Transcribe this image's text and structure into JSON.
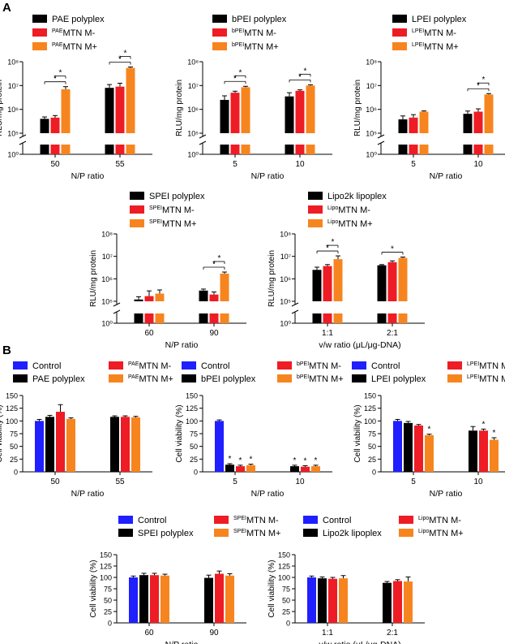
{
  "colors": {
    "black": "#000000",
    "red": "#ee1c24",
    "orange": "#f7851f",
    "blue": "#1f1fff"
  },
  "panels": [
    "A",
    "B"
  ],
  "chart_data": [
    {
      "panel": "A",
      "type": "bar",
      "log_scale": true,
      "ylim": [
        1,
        100000000
      ],
      "broken_axis": true,
      "ylabel": "RLU/mg protein",
      "xlabel": "N/P ratio",
      "yticks": [
        "10⁰",
        "10⁵",
        "10⁶",
        "10⁷",
        "10⁸"
      ],
      "legend": [
        {
          "text": "PAE polyplex",
          "sup": "",
          "color": "#000000"
        },
        {
          "text": "MTN M-",
          "sup": "PAE",
          "color": "#ee1c24"
        },
        {
          "text": "MTN M+",
          "sup": "PAE",
          "color": "#f7851f"
        }
      ],
      "categories": [
        "50",
        "55"
      ],
      "series": [
        {
          "name": "PAE polyplex",
          "values": [
            400000,
            8000000
          ],
          "err": [
            80000,
            3000000
          ]
        },
        {
          "name": "PAEMTN M-",
          "values": [
            450000,
            9000000
          ],
          "err": [
            100000,
            3500000
          ]
        },
        {
          "name": "PAEMTN M+",
          "values": [
            7000000,
            55000000
          ],
          "err": [
            2000000,
            5000000
          ]
        }
      ],
      "significance": [
        "*",
        "*",
        "*",
        "*"
      ]
    },
    {
      "panel": "A",
      "type": "bar",
      "log_scale": true,
      "ylim": [
        1,
        100000000
      ],
      "broken_axis": true,
      "ylabel": "RLU/mg protein",
      "xlabel": "N/P ratio",
      "yticks": [
        "10⁰",
        "10⁵",
        "10⁶",
        "10⁷",
        "10⁸"
      ],
      "legend": [
        {
          "text": "bPEI polyplex",
          "sup": "",
          "color": "#000000"
        },
        {
          "text": "MTN M-",
          "sup": "bPEI",
          "color": "#ee1c24"
        },
        {
          "text": "MTN M+",
          "sup": "bPEI",
          "color": "#f7851f"
        }
      ],
      "categories": [
        "5",
        "10"
      ],
      "series": [
        {
          "name": "bPEI polyplex",
          "values": [
            2500000,
            3500000
          ],
          "err": [
            1200000,
            1500000
          ]
        },
        {
          "name": "bPEIMTN M-",
          "values": [
            5000000,
            6000000
          ],
          "err": [
            800000,
            600000
          ]
        },
        {
          "name": "bPEIMTN M+",
          "values": [
            8500000,
            10000000
          ],
          "err": [
            800000,
            800000
          ]
        }
      ],
      "significance": [
        "*",
        "*",
        "*",
        "*"
      ]
    },
    {
      "panel": "A",
      "type": "bar",
      "log_scale": true,
      "ylim": [
        1,
        100000000
      ],
      "broken_axis": true,
      "ylabel": "RLU/mg protein",
      "xlabel": "N/P ratio",
      "yticks": [
        "10⁰",
        "10⁵",
        "10⁶",
        "10⁷",
        "10⁸"
      ],
      "legend": [
        {
          "text": "LPEI polyplex",
          "sup": "",
          "color": "#000000"
        },
        {
          "text": "MTN M-",
          "sup": "LPEI",
          "color": "#ee1c24"
        },
        {
          "text": "MTN M+",
          "sup": "LPEI",
          "color": "#f7851f"
        }
      ],
      "categories": [
        "5",
        "10"
      ],
      "series": [
        {
          "name": "LPEI polyplex",
          "values": [
            380000,
            650000
          ],
          "err": [
            150000,
            200000
          ]
        },
        {
          "name": "LPEIMTN M-",
          "values": [
            450000,
            800000
          ],
          "err": [
            150000,
            250000
          ]
        },
        {
          "name": "LPEIMTN M+",
          "values": [
            800000,
            4200000
          ],
          "err": [
            60000,
            400000
          ]
        }
      ],
      "significance": [
        "*",
        "*"
      ]
    },
    {
      "panel": "A",
      "type": "bar",
      "log_scale": true,
      "ylim": [
        1,
        100000000
      ],
      "broken_axis": true,
      "ylabel": "RLU/mg protein",
      "xlabel": "N/P ratio",
      "yticks": [
        "10⁰",
        "10⁵",
        "10⁶",
        "10⁷",
        "10⁸"
      ],
      "legend": [
        {
          "text": "SPEI polyplex",
          "sup": "",
          "color": "#000000"
        },
        {
          "text": "MTN M-",
          "sup": "SPEI",
          "color": "#ee1c24"
        },
        {
          "text": "MTN M+",
          "sup": "SPEI",
          "color": "#f7851f"
        }
      ],
      "categories": [
        "60",
        "90"
      ],
      "series": [
        {
          "name": "SPEI polyplex",
          "values": [
            120000,
            300000
          ],
          "err": [
            40000,
            50000
          ]
        },
        {
          "name": "SPEIMTN M-",
          "values": [
            170000,
            200000
          ],
          "err": [
            120000,
            60000
          ]
        },
        {
          "name": "SPEIMTN M+",
          "values": [
            220000,
            1700000
          ],
          "err": [
            100000,
            300000
          ]
        }
      ],
      "significance": [
        "*",
        "*"
      ]
    },
    {
      "panel": "A",
      "type": "bar",
      "log_scale": true,
      "ylim": [
        1,
        100000000
      ],
      "broken_axis": true,
      "ylabel": "RLU/mg protein",
      "xlabel": "v/w ratio (μL/μg-DNA)",
      "yticks": [
        "10⁰",
        "10⁵",
        "10⁶",
        "10⁷",
        "10⁸"
      ],
      "legend": [
        {
          "text": "Lipo2k lipoplex",
          "sup": "",
          "color": "#000000"
        },
        {
          "text": "MTN M-",
          "sup": "Lipo",
          "color": "#ee1c24"
        },
        {
          "text": "MTN M+",
          "sup": "Lipo",
          "color": "#f7851f"
        }
      ],
      "categories": [
        "1:1",
        "2:1"
      ],
      "series": [
        {
          "name": "Lipo2k lipoplex",
          "values": [
            2500000,
            4000000
          ],
          "err": [
            800000,
            300000
          ]
        },
        {
          "name": "LipoMTN M-",
          "values": [
            3700000,
            5500000
          ],
          "err": [
            600000,
            800000
          ]
        },
        {
          "name": "LipoMTN M+",
          "values": [
            7500000,
            8500000
          ],
          "err": [
            3000000,
            800000
          ]
        }
      ],
      "significance": [
        "*",
        "*",
        "*"
      ]
    },
    {
      "panel": "B",
      "type": "bar",
      "ylim": [
        0,
        150
      ],
      "ylabel": "Cell viability (%)",
      "xlabel": "N/P ratio",
      "yticks": [
        "0",
        "25",
        "50",
        "75",
        "100",
        "125",
        "150"
      ],
      "legend": [
        {
          "text": "Control",
          "sup": "",
          "color": "#1f1fff"
        },
        {
          "text": "PAE polyplex",
          "sup": "",
          "color": "#000000"
        },
        {
          "text": "MTN M-",
          "sup": "PAE",
          "color": "#ee1c24"
        },
        {
          "text": "MTN M+",
          "sup": "PAE",
          "color": "#f7851f"
        }
      ],
      "categories": [
        "50",
        "55"
      ],
      "control": {
        "value": 100,
        "err": 3
      },
      "series": [
        {
          "name": "PAE polyplex",
          "values": [
            108,
            108
          ],
          "err": [
            3,
            2
          ]
        },
        {
          "name": "PAEMTN M-",
          "values": [
            118,
            108
          ],
          "err": [
            14,
            2
          ]
        },
        {
          "name": "PAEMTN M+",
          "values": [
            104,
            107
          ],
          "err": [
            2,
            2
          ]
        }
      ],
      "significance": []
    },
    {
      "panel": "B",
      "type": "bar",
      "ylim": [
        0,
        150
      ],
      "ylabel": "Cell viability (%)",
      "xlabel": "N/P ratio",
      "yticks": [
        "0",
        "25",
        "50",
        "75",
        "100",
        "125",
        "150"
      ],
      "legend": [
        {
          "text": "Control",
          "sup": "",
          "color": "#1f1fff"
        },
        {
          "text": "bPEI polyplex",
          "sup": "",
          "color": "#000000"
        },
        {
          "text": "MTN M-",
          "sup": "bPEI",
          "color": "#ee1c24"
        },
        {
          "text": "MTN M+",
          "sup": "bPEI",
          "color": "#f7851f"
        }
      ],
      "categories": [
        "5",
        "10"
      ],
      "control": {
        "value": 100,
        "err": 2
      },
      "series": [
        {
          "name": "bPEI polyplex",
          "values": [
            14,
            11
          ],
          "err": [
            2,
            2
          ]
        },
        {
          "name": "bPEIMTN M-",
          "values": [
            11,
            10
          ],
          "err": [
            2,
            2
          ]
        },
        {
          "name": "bPEIMTN M+",
          "values": [
            13,
            11
          ],
          "err": [
            2,
            2
          ]
        }
      ],
      "significance": [
        "*",
        "*",
        "*",
        "*",
        "*",
        "*"
      ]
    },
    {
      "panel": "B",
      "type": "bar",
      "ylim": [
        0,
        150
      ],
      "ylabel": "Cell viability (%)",
      "xlabel": "N/P ratio",
      "yticks": [
        "0",
        "25",
        "50",
        "75",
        "100",
        "125",
        "150"
      ],
      "legend": [
        {
          "text": "Control",
          "sup": "",
          "color": "#1f1fff"
        },
        {
          "text": "LPEI polyplex",
          "sup": "",
          "color": "#000000"
        },
        {
          "text": "MTN M-",
          "sup": "LPEI",
          "color": "#ee1c24"
        },
        {
          "text": "MTN M+",
          "sup": "LPEI",
          "color": "#f7851f"
        }
      ],
      "categories": [
        "5",
        "10"
      ],
      "control": {
        "value": 100,
        "err": 3
      },
      "series": [
        {
          "name": "LPEI polyplex",
          "values": [
            96,
            81
          ],
          "err": [
            3,
            8
          ]
        },
        {
          "name": "LPEIMTN M-",
          "values": [
            91,
            81
          ],
          "err": [
            2,
            3
          ]
        },
        {
          "name": "LPEIMTN M+",
          "values": [
            72,
            63
          ],
          "err": [
            2,
            4
          ]
        }
      ],
      "significance": [
        "*",
        "*",
        "*",
        "*",
        "*"
      ]
    },
    {
      "panel": "B",
      "type": "bar",
      "ylim": [
        0,
        150
      ],
      "ylabel": "Cell viability (%)",
      "xlabel": "N/P ratio",
      "yticks": [
        "0",
        "25",
        "50",
        "75",
        "100",
        "125",
        "150"
      ],
      "legend": [
        {
          "text": "Control",
          "sup": "",
          "color": "#1f1fff"
        },
        {
          "text": "SPEI polyplex",
          "sup": "",
          "color": "#000000"
        },
        {
          "text": "MTN M-",
          "sup": "SPEI",
          "color": "#ee1c24"
        },
        {
          "text": "MTN M+",
          "sup": "SPEI",
          "color": "#f7851f"
        }
      ],
      "categories": [
        "60",
        "90"
      ],
      "control": {
        "value": 100,
        "err": 3
      },
      "series": [
        {
          "name": "SPEI polyplex",
          "values": [
            105,
            99
          ],
          "err": [
            4,
            6
          ]
        },
        {
          "name": "SPEIMTN M-",
          "values": [
            105,
            108
          ],
          "err": [
            4,
            6
          ]
        },
        {
          "name": "SPEIMTN M+",
          "values": [
            104,
            104
          ],
          "err": [
            3,
            4
          ]
        }
      ],
      "significance": []
    },
    {
      "panel": "B",
      "type": "bar",
      "ylim": [
        0,
        150
      ],
      "ylabel": "Cell viability (%)",
      "xlabel": "v/w ratio (μL/μg-DNA)",
      "yticks": [
        "0",
        "25",
        "50",
        "75",
        "100",
        "125",
        "150"
      ],
      "legend": [
        {
          "text": "Control",
          "sup": "",
          "color": "#1f1fff"
        },
        {
          "text": "Lipo2k lipoplex",
          "sup": "",
          "color": "#000000"
        },
        {
          "text": "MTN M-",
          "sup": "Lipo",
          "color": "#ee1c24"
        },
        {
          "text": "MTN M+",
          "sup": "Lipo",
          "color": "#f7851f"
        }
      ],
      "categories": [
        "1:1",
        "2:1"
      ],
      "control": {
        "value": 100,
        "err": 3
      },
      "series": [
        {
          "name": "Lipo2k lipoplex",
          "values": [
            98,
            88
          ],
          "err": [
            3,
            3
          ]
        },
        {
          "name": "LipoMTN M-",
          "values": [
            97,
            92
          ],
          "err": [
            3,
            3
          ]
        },
        {
          "name": "LipoMTN M+",
          "values": [
            98,
            91
          ],
          "err": [
            6,
            10
          ]
        }
      ],
      "significance": [
        "*"
      ]
    }
  ]
}
